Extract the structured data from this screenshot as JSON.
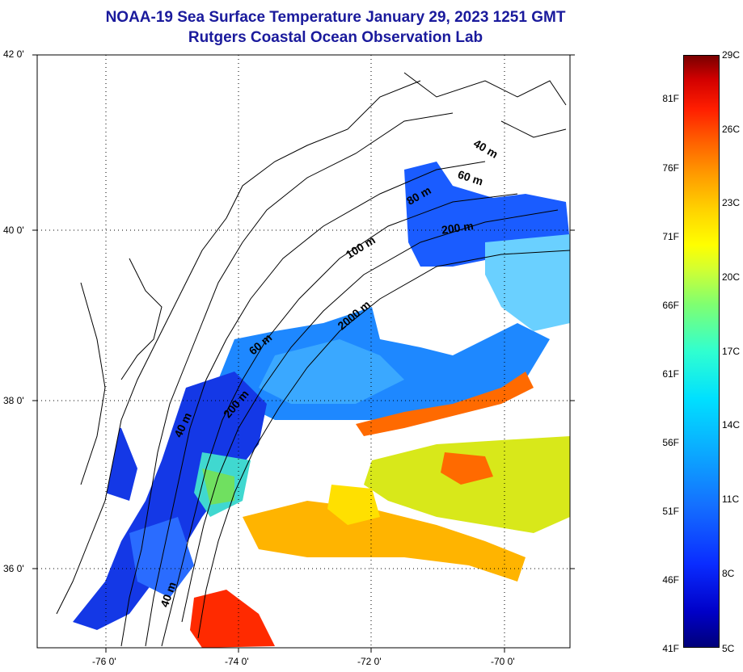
{
  "title": {
    "line1": "NOAA-19 Sea Surface Temperature January 29, 2023 1251 GMT",
    "line2": "Rutgers Coastal Ocean Observation Lab"
  },
  "axes": {
    "lat_labels": [
      "42 0'",
      "40 0'",
      "38 0'",
      "36 0'"
    ],
    "lon_labels": [
      "-76 0'",
      "-74 0'",
      "-72 0'",
      "-70 0'"
    ]
  },
  "isobaths": {
    "labels": [
      "40 m",
      "60 m",
      "80 m",
      "200 m",
      "100 m",
      "2000 m",
      "60 m",
      "200 m",
      "40 m",
      "40 m"
    ]
  },
  "colorbar": {
    "fahrenheit": [
      "81F",
      "76F",
      "71F",
      "66F",
      "61F",
      "56F",
      "51F",
      "46F",
      "41F"
    ],
    "celsius": [
      "29C",
      "26C",
      "23C",
      "20C",
      "17C",
      "14C",
      "11C",
      "8C",
      "5C"
    ]
  },
  "colors": {
    "title": "#1a1a9c",
    "cold": "#0a2cff",
    "warm": "#ff1e00"
  }
}
